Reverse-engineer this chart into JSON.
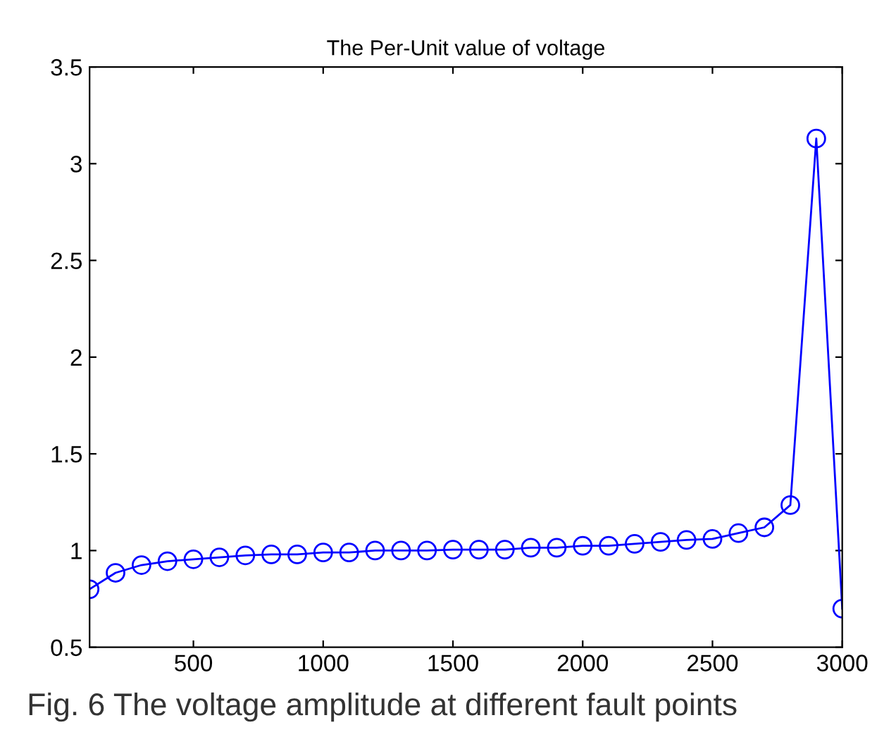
{
  "chart_data": {
    "type": "line",
    "title": "The Per-Unit value of voltage",
    "x": [
      100,
      200,
      300,
      400,
      500,
      600,
      700,
      800,
      900,
      1000,
      1100,
      1200,
      1300,
      1400,
      1500,
      1600,
      1700,
      1800,
      1900,
      2000,
      2100,
      2200,
      2300,
      2400,
      2500,
      2600,
      2700,
      2800,
      2900,
      3000
    ],
    "series": [
      {
        "color": "#0000ff",
        "values": [
          0.8,
          0.885,
          0.925,
          0.945,
          0.955,
          0.965,
          0.975,
          0.98,
          0.98,
          0.99,
          0.99,
          1.0,
          1.0,
          1.0,
          1.005,
          1.005,
          1.005,
          1.015,
          1.015,
          1.025,
          1.025,
          1.035,
          1.045,
          1.055,
          1.06,
          1.09,
          1.12,
          1.235,
          3.13,
          0.7
        ]
      }
    ],
    "xlim": [
      100,
      3000
    ],
    "ylim": [
      0.5,
      3.5
    ],
    "xticks": [
      500,
      1000,
      1500,
      2000,
      2500,
      3000
    ],
    "yticks": [
      {
        "value": 0.5,
        "label": "0.5"
      },
      1,
      {
        "value": 1.5,
        "label": "1.5"
      },
      2,
      {
        "value": 2.5,
        "label": "2.5"
      },
      3,
      {
        "value": 3.5,
        "label": "3.5"
      }
    ],
    "marker": "circle",
    "line_style": "solid",
    "grid": false,
    "legend": false,
    "annotations": [
      "Fig. 6 The voltage amplitude at different fault points"
    ]
  }
}
